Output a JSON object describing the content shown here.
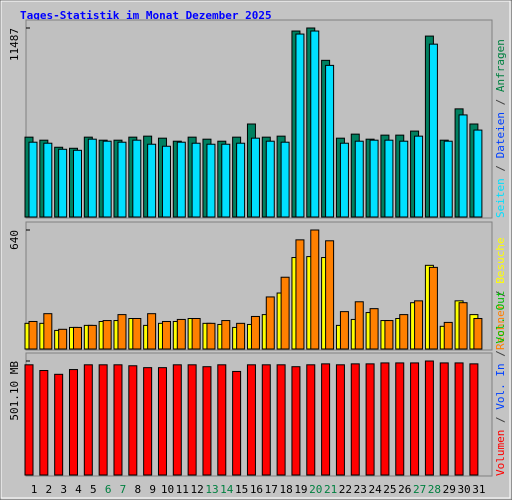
{
  "chart_data": [
    {
      "type": "bar",
      "title": "Tages-Statistik im Monat Dezember 2025",
      "ylim": [
        0,
        11487
      ],
      "yticks": [
        11487
      ],
      "legend": [
        {
          "name": "Seiten",
          "color": "#00e0ff"
        },
        {
          "name": "Dateien",
          "color": "#0040ff"
        },
        {
          "name": "Anfragen",
          "color": "#008040"
        }
      ],
      "legend_separator": "/",
      "series": [
        {
          "color": "#008060",
          "values": [
            4853,
            4669,
            4239,
            4177,
            4853,
            4669,
            4669,
            4853,
            4914,
            4791,
            4607,
            4853,
            4730,
            4607,
            4853,
            5652,
            4853,
            4914,
            11303,
            11487,
            9522,
            4791,
            5037,
            4730,
            4976,
            4976,
            5222,
            10996,
            4669,
            6573,
            5652
          ]
        },
        {
          "color": "#00e0ff",
          "values": [
            4546,
            4484,
            4116,
            4054,
            4730,
            4607,
            4546,
            4669,
            4423,
            4300,
            4546,
            4484,
            4423,
            4423,
            4484,
            4791,
            4607,
            4546,
            11119,
            11303,
            9215,
            4484,
            4607,
            4669,
            4669,
            4607,
            4914,
            10505,
            4607,
            6204,
            5283
          ]
        }
      ]
    },
    {
      "type": "bar",
      "ylim": [
        0,
        640
      ],
      "yticks": [
        640
      ],
      "legend": [
        {
          "name": "Rechner",
          "color": "#ff8000"
        },
        {
          "name": "Besuche",
          "color": "#ffff00"
        }
      ],
      "legend_separator": "/",
      "series": [
        {
          "color": "#ffff00",
          "values": [
            138,
            138,
            100,
            116,
            127,
            148,
            153,
            164,
            127,
            138,
            148,
            164,
            138,
            132,
            116,
            132,
            185,
            301,
            492,
            497,
            492,
            127,
            159,
            196,
            153,
            164,
            249,
            450,
            122,
            259,
            185
          ]
        },
        {
          "color": "#ff8000",
          "values": [
            148,
            190,
            106,
            116,
            127,
            153,
            185,
            164,
            190,
            148,
            159,
            164,
            138,
            153,
            138,
            175,
            280,
            386,
            587,
            640,
            582,
            201,
            254,
            217,
            153,
            185,
            259,
            439,
            143,
            249,
            164
          ]
        }
      ]
    },
    {
      "type": "bar",
      "ylim": [
        0,
        501.1
      ],
      "yticks": [
        {
          "value": 501.1,
          "label": "501.10 MB"
        }
      ],
      "legend": [
        {
          "name": "Volumen",
          "color": "#ff0000"
        },
        {
          "name": "Vol. In",
          "color": "#0040ff"
        },
        {
          "name": "Vol. Out",
          "color": "#00c000"
        }
      ],
      "legend_separator": "/",
      "categories": [
        "1",
        "2",
        "3",
        "4",
        "5",
        "6",
        "7",
        "8",
        "9",
        "10",
        "11",
        "12",
        "13",
        "14",
        "15",
        "16",
        "17",
        "18",
        "19",
        "20",
        "21",
        "22",
        "23",
        "24",
        "25",
        "26",
        "27",
        "28",
        "29",
        "30",
        "31"
      ],
      "category_colors": [
        "#000000",
        "#000000",
        "#000000",
        "#000000",
        "#000000",
        "#008040",
        "#008040",
        "#000000",
        "#000000",
        "#000000",
        "#000000",
        "#000000",
        "#008040",
        "#008040",
        "#000000",
        "#000000",
        "#000000",
        "#000000",
        "#000000",
        "#008040",
        "#008040",
        "#000000",
        "#000000",
        "#000000",
        "#000000",
        "#000000",
        "#008040",
        "#008040",
        "#000000",
        "#000000",
        "#000000"
      ],
      "series": [
        {
          "color": "#ff0000",
          "values": [
            484.4,
            459.3,
            442.6,
            463.5,
            484.4,
            484.4,
            484.4,
            480.2,
            471.9,
            471.9,
            484.4,
            484.4,
            476.1,
            484.4,
            455.2,
            484.4,
            484.4,
            484.4,
            476.1,
            484.4,
            488.6,
            484.4,
            488.6,
            488.6,
            492.7,
            492.7,
            492.7,
            501.1,
            492.7,
            492.7,
            488.6
          ]
        }
      ]
    }
  ]
}
